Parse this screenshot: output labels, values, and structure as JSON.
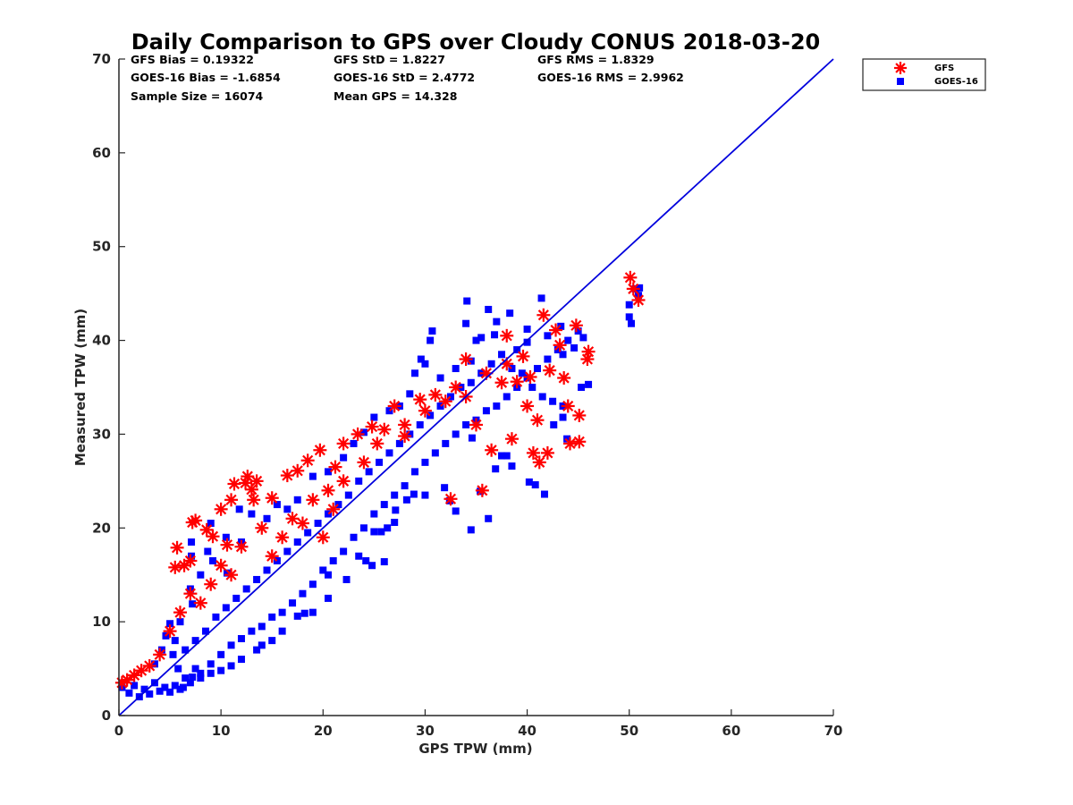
{
  "chart_data": {
    "type": "scatter",
    "title": "Daily Comparison to GPS over Cloudy CONUS 2018-03-20",
    "xlabel": "GPS TPW (mm)",
    "ylabel": "Measured TPW (mm)",
    "xlim": [
      0,
      70
    ],
    "ylim": [
      0,
      70
    ],
    "x_ticks": [
      "0",
      "10",
      "20",
      "30",
      "40",
      "50",
      "60",
      "70"
    ],
    "y_ticks": [
      "0",
      "10",
      "20",
      "30",
      "40",
      "50",
      "60",
      "70"
    ],
    "grid": false,
    "legend_position": "top-right, outside plot",
    "stats": [
      [
        "GFS Bias = 0.19322",
        "GFS StD = 1.8227",
        "GFS RMS = 1.8329"
      ],
      [
        "GOES-16 Bias = -1.6854",
        "GOES-16 StD = 2.4772",
        "GOES-16 RMS = 2.9962"
      ],
      [
        "Sample Size = 16074",
        "Mean GPS = 14.328",
        ""
      ]
    ],
    "reference_line": {
      "label": "1:1",
      "x": [
        0,
        70
      ],
      "y": [
        0,
        70
      ],
      "color": "#0000dd"
    },
    "series": [
      {
        "name": "GFS",
        "marker": "asterisk",
        "color": "#ff0000",
        "points": [
          [
            0.3,
            3.5
          ],
          [
            0.8,
            3.8
          ],
          [
            1.5,
            4.3
          ],
          [
            2.2,
            4.8
          ],
          [
            3.0,
            5.3
          ],
          [
            4.0,
            6.5
          ],
          [
            5.5,
            15.8
          ],
          [
            5.7,
            17.9
          ],
          [
            6.4,
            16.0
          ],
          [
            7.0,
            16.5
          ],
          [
            7.2,
            20.6
          ],
          [
            7.5,
            20.8
          ],
          [
            8.6,
            19.8
          ],
          [
            9.2,
            19.1
          ],
          [
            10.0,
            22.0
          ],
          [
            10.6,
            18.2
          ],
          [
            11.0,
            23.0
          ],
          [
            11.3,
            24.7
          ],
          [
            12.4,
            24.8
          ],
          [
            12.6,
            25.5
          ],
          [
            13.0,
            24.1
          ],
          [
            13.5,
            25.0
          ],
          [
            13.2,
            23.0
          ],
          [
            15.0,
            23.2
          ],
          [
            16.5,
            25.6
          ],
          [
            17.5,
            26.1
          ],
          [
            18.5,
            27.2
          ],
          [
            19.7,
            28.3
          ],
          [
            20.5,
            24.0
          ],
          [
            21.2,
            26.5
          ],
          [
            22.0,
            29.0
          ],
          [
            23.4,
            30.0
          ],
          [
            24.8,
            30.8
          ],
          [
            25.3,
            29.0
          ],
          [
            27.0,
            33.0
          ],
          [
            28.0,
            29.8
          ],
          [
            29.5,
            33.7
          ],
          [
            31.0,
            34.2
          ],
          [
            32.5,
            23.1
          ],
          [
            33.0,
            35.0
          ],
          [
            34.0,
            38.0
          ],
          [
            35.0,
            31.0
          ],
          [
            35.6,
            24.0
          ],
          [
            36.5,
            28.3
          ],
          [
            37.5,
            35.5
          ],
          [
            38.5,
            29.5
          ],
          [
            39.0,
            35.6
          ],
          [
            39.6,
            38.3
          ],
          [
            40.3,
            36.1
          ],
          [
            40.6,
            28.0
          ],
          [
            41.2,
            27.0
          ],
          [
            41.6,
            42.7
          ],
          [
            42.0,
            28.0
          ],
          [
            42.2,
            36.8
          ],
          [
            42.8,
            41.1
          ],
          [
            43.2,
            39.5
          ],
          [
            43.6,
            36.0
          ],
          [
            44.0,
            33.0
          ],
          [
            44.2,
            29.0
          ],
          [
            44.8,
            41.6
          ],
          [
            45.1,
            32.0
          ],
          [
            45.1,
            29.2
          ],
          [
            45.9,
            38.0
          ],
          [
            46.0,
            38.8
          ],
          [
            50.1,
            46.7
          ],
          [
            50.4,
            45.5
          ],
          [
            50.9,
            44.3
          ],
          [
            5.0,
            9.0
          ],
          [
            6.0,
            11.0
          ],
          [
            7.0,
            13.0
          ],
          [
            8.0,
            12.0
          ],
          [
            9.0,
            14.0
          ],
          [
            10.0,
            16.0
          ],
          [
            11.0,
            15.0
          ],
          [
            12.0,
            18.0
          ],
          [
            14.0,
            20.0
          ],
          [
            15.0,
            17.0
          ],
          [
            16.0,
            19.0
          ],
          [
            17.0,
            21.0
          ],
          [
            18.0,
            20.5
          ],
          [
            19.0,
            23.0
          ],
          [
            20.0,
            19.0
          ],
          [
            21.0,
            22.0
          ],
          [
            22.0,
            25.0
          ],
          [
            24.0,
            27.0
          ],
          [
            26.0,
            30.5
          ],
          [
            28.0,
            31.0
          ],
          [
            30.0,
            32.5
          ],
          [
            32.0,
            33.5
          ],
          [
            34.0,
            34.0
          ],
          [
            36.0,
            36.5
          ],
          [
            38.0,
            37.5
          ],
          [
            40.0,
            33.0
          ],
          [
            38.0,
            40.5
          ],
          [
            41.0,
            31.5
          ]
        ]
      },
      {
        "name": "GOES-16",
        "marker": "square",
        "color": "#0000ff",
        "points": [
          [
            0.3,
            3.0
          ],
          [
            1.0,
            2.4
          ],
          [
            1.5,
            3.2
          ],
          [
            2.0,
            2.0
          ],
          [
            2.5,
            2.8
          ],
          [
            3.0,
            2.3
          ],
          [
            3.5,
            3.5
          ],
          [
            4.0,
            2.6
          ],
          [
            4.5,
            3.0
          ],
          [
            5.0,
            2.5
          ],
          [
            5.5,
            3.2
          ],
          [
            6.0,
            2.8
          ],
          [
            6.5,
            4.0
          ],
          [
            7.0,
            3.5
          ],
          [
            7.5,
            5.0
          ],
          [
            8.0,
            4.5
          ],
          [
            9.0,
            5.5
          ],
          [
            10.0,
            6.5
          ],
          [
            11.0,
            7.5
          ],
          [
            12.0,
            8.2
          ],
          [
            13.0,
            9.0
          ],
          [
            14.0,
            9.5
          ],
          [
            15.0,
            10.5
          ],
          [
            16.0,
            11.0
          ],
          [
            17.0,
            12.0
          ],
          [
            18.0,
            13.0
          ],
          [
            19.0,
            14.0
          ],
          [
            20.0,
            15.5
          ],
          [
            21.0,
            16.5
          ],
          [
            22.0,
            17.5
          ],
          [
            23.0,
            19.0
          ],
          [
            24.0,
            20.0
          ],
          [
            25.0,
            21.5
          ],
          [
            26.0,
            22.5
          ],
          [
            27.0,
            23.5
          ],
          [
            28.0,
            24.5
          ],
          [
            29.0,
            26.0
          ],
          [
            30.0,
            27.0
          ],
          [
            31.0,
            28.0
          ],
          [
            32.0,
            29.0
          ],
          [
            33.0,
            30.0
          ],
          [
            34.0,
            31.0
          ],
          [
            35.0,
            31.5
          ],
          [
            36.0,
            32.5
          ],
          [
            37.0,
            33.0
          ],
          [
            38.0,
            34.0
          ],
          [
            39.0,
            35.0
          ],
          [
            40.0,
            36.0
          ],
          [
            41.0,
            37.0
          ],
          [
            42.0,
            38.0
          ],
          [
            43.0,
            39.0
          ],
          [
            44.0,
            40.0
          ],
          [
            45.0,
            41.0
          ],
          [
            41.4,
            44.5
          ],
          [
            38.3,
            42.9
          ],
          [
            36.2,
            43.3
          ],
          [
            34.1,
            44.2
          ],
          [
            34.0,
            41.8
          ],
          [
            30.7,
            41.0
          ],
          [
            30.5,
            40.0
          ],
          [
            35.5,
            40.3
          ],
          [
            37.0,
            42.0
          ],
          [
            40.0,
            41.2
          ],
          [
            43.3,
            41.5
          ],
          [
            44.6,
            39.2
          ],
          [
            46.0,
            35.3
          ],
          [
            45.3,
            35.0
          ],
          [
            43.9,
            29.5
          ],
          [
            43.5,
            31.8
          ],
          [
            42.6,
            31.0
          ],
          [
            41.7,
            23.6
          ],
          [
            40.8,
            24.6
          ],
          [
            40.2,
            24.9
          ],
          [
            38.5,
            26.6
          ],
          [
            38.0,
            27.7
          ],
          [
            37.5,
            27.7
          ],
          [
            36.9,
            26.3
          ],
          [
            34.6,
            29.6
          ],
          [
            35.4,
            23.9
          ],
          [
            31.9,
            24.3
          ],
          [
            30.0,
            23.5
          ],
          [
            32.4,
            22.9
          ],
          [
            33.0,
            21.8
          ],
          [
            34.5,
            19.8
          ],
          [
            36.2,
            21.0
          ],
          [
            28.9,
            23.6
          ],
          [
            28.2,
            23.0
          ],
          [
            27.1,
            21.9
          ],
          [
            25.0,
            19.6
          ],
          [
            25.7,
            19.6
          ],
          [
            26.3,
            20.0
          ],
          [
            27.0,
            20.6
          ],
          [
            23.5,
            17.0
          ],
          [
            24.2,
            16.5
          ],
          [
            24.8,
            16.0
          ],
          [
            26.0,
            16.4
          ],
          [
            20.5,
            15.0
          ],
          [
            22.3,
            14.5
          ],
          [
            20.5,
            12.5
          ],
          [
            19.0,
            11.0
          ],
          [
            18.2,
            10.9
          ],
          [
            17.5,
            10.6
          ],
          [
            16.0,
            9.0
          ],
          [
            15.0,
            8.0
          ],
          [
            14.0,
            7.5
          ],
          [
            13.5,
            7.0
          ],
          [
            12.0,
            6.0
          ],
          [
            11.0,
            5.3
          ],
          [
            10.0,
            4.8
          ],
          [
            9.0,
            4.5
          ],
          [
            8.0,
            4.0
          ],
          [
            7.2,
            4.1
          ],
          [
            6.3,
            3.0
          ],
          [
            5.8,
            5.0
          ],
          [
            5.5,
            8.0
          ],
          [
            6.0,
            10.0
          ],
          [
            7.2,
            11.9
          ],
          [
            7.0,
            13.5
          ],
          [
            8.0,
            15.0
          ],
          [
            9.2,
            16.5
          ],
          [
            7.1,
            17.0
          ],
          [
            7.1,
            18.5
          ],
          [
            8.7,
            17.5
          ],
          [
            9.0,
            20.5
          ],
          [
            10.5,
            19.0
          ],
          [
            10.6,
            15.2
          ],
          [
            11.8,
            22.0
          ],
          [
            12.0,
            18.5
          ],
          [
            13.0,
            21.5
          ],
          [
            14.5,
            21.0
          ],
          [
            15.5,
            22.5
          ],
          [
            16.5,
            22.0
          ],
          [
            17.5,
            23.0
          ],
          [
            19.0,
            25.5
          ],
          [
            20.5,
            26.0
          ],
          [
            22.0,
            27.5
          ],
          [
            23.0,
            29.0
          ],
          [
            24.0,
            30.2
          ],
          [
            25.0,
            31.8
          ],
          [
            26.5,
            32.5
          ],
          [
            27.5,
            33.0
          ],
          [
            28.5,
            34.3
          ],
          [
            29.0,
            36.5
          ],
          [
            29.6,
            38.0
          ],
          [
            30.0,
            37.5
          ],
          [
            31.5,
            36.0
          ],
          [
            33.0,
            37.0
          ],
          [
            34.5,
            37.8
          ],
          [
            35.0,
            40.0
          ],
          [
            36.8,
            40.6
          ],
          [
            39.0,
            39.0
          ],
          [
            40.0,
            39.8
          ],
          [
            42.0,
            40.5
          ],
          [
            43.5,
            38.5
          ],
          [
            45.5,
            40.3
          ],
          [
            50.0,
            43.8
          ],
          [
            50.0,
            42.5
          ],
          [
            50.2,
            41.8
          ],
          [
            50.6,
            45.5
          ],
          [
            50.9,
            44.8
          ],
          [
            51.0,
            45.6
          ],
          [
            3.5,
            5.5
          ],
          [
            4.2,
            7.0
          ],
          [
            4.6,
            8.5
          ],
          [
            5.0,
            9.8
          ],
          [
            5.3,
            6.5
          ],
          [
            6.5,
            7.0
          ],
          [
            7.5,
            8.0
          ],
          [
            8.5,
            9.0
          ],
          [
            9.5,
            10.5
          ],
          [
            10.5,
            11.5
          ],
          [
            11.5,
            12.5
          ],
          [
            12.5,
            13.5
          ],
          [
            13.5,
            14.5
          ],
          [
            14.5,
            15.5
          ],
          [
            15.5,
            16.5
          ],
          [
            16.5,
            17.5
          ],
          [
            17.5,
            18.5
          ],
          [
            18.5,
            19.5
          ],
          [
            19.5,
            20.5
          ],
          [
            20.5,
            21.5
          ],
          [
            21.5,
            22.5
          ],
          [
            22.5,
            23.5
          ],
          [
            23.5,
            25.0
          ],
          [
            24.5,
            26.0
          ],
          [
            25.5,
            27.0
          ],
          [
            26.5,
            28.0
          ],
          [
            27.5,
            29.0
          ],
          [
            28.5,
            30.0
          ],
          [
            29.5,
            31.0
          ],
          [
            30.5,
            32.0
          ],
          [
            31.5,
            33.0
          ],
          [
            32.5,
            34.0
          ],
          [
            33.5,
            35.0
          ],
          [
            34.5,
            35.5
          ],
          [
            35.5,
            36.5
          ],
          [
            36.5,
            37.5
          ],
          [
            37.5,
            38.5
          ],
          [
            38.5,
            37.0
          ],
          [
            39.5,
            36.5
          ],
          [
            40.5,
            35.0
          ],
          [
            41.5,
            34.0
          ],
          [
            42.5,
            33.5
          ],
          [
            43.5,
            33.0
          ]
        ]
      }
    ]
  }
}
